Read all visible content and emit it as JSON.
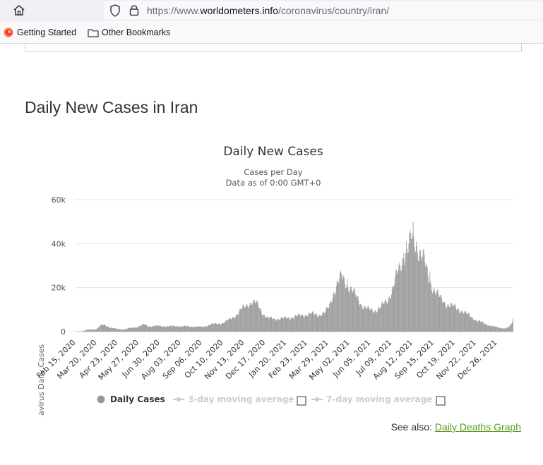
{
  "browser": {
    "url_prefix": "https://www.",
    "url_host": "worldometers.info",
    "url_path": "/coronavirus/country/iran/",
    "bookmarks": [
      {
        "label": "Getting Started",
        "icon": "firefox-icon"
      },
      {
        "label": "Other Bookmarks",
        "icon": "folder-icon"
      }
    ]
  },
  "section": {
    "title": "Daily New Cases in Iran"
  },
  "see_also": {
    "prefix": "See also:",
    "link": "Daily Deaths Graph"
  },
  "chart_data": {
    "type": "bar",
    "title": "Daily New Cases",
    "subtitle_lines": [
      "Cases per Day",
      "Data as of 0:00 GMT+0"
    ],
    "ylabel": "Novel Coronavirus Daily Cases",
    "ylim": [
      0,
      60000
    ],
    "y_ticks": [
      {
        "value": 0,
        "label": "0"
      },
      {
        "value": 20000,
        "label": "20k"
      },
      {
        "value": 40000,
        "label": "40k"
      },
      {
        "value": 60000,
        "label": "60k"
      }
    ],
    "x_start": "2020-02-15",
    "x_end": "2022-01-20",
    "x_tick_labels": [
      "Feb 15, 2020",
      "Mar 20, 2020",
      "Apr 23, 2020",
      "May 27, 2020",
      "Jun 30, 2020",
      "Aug 03, 2020",
      "Sep 06, 2020",
      "Oct 10, 2020",
      "Nov 13, 2020",
      "Dec 17, 2020",
      "Jan 20, 2021",
      "Feb 23, 2021",
      "Mar 29, 2021",
      "May 02, 2021",
      "Jun 05, 2021",
      "Jul 09, 2021",
      "Aug 12, 2021",
      "Sep 15, 2021",
      "Oct 19, 2021",
      "Nov 22, 2021",
      "Dec 26, 2021"
    ],
    "bar_color": "#999999",
    "grid": true,
    "series": [
      {
        "name": "Daily Cases",
        "points": [
          [
            "2020-02-15",
            0
          ],
          [
            "2020-02-25",
            100
          ],
          [
            "2020-03-05",
            900
          ],
          [
            "2020-03-12",
            1000
          ],
          [
            "2020-03-20",
            1200
          ],
          [
            "2020-03-26",
            2800
          ],
          [
            "2020-04-02",
            3100
          ],
          [
            "2020-04-10",
            1900
          ],
          [
            "2020-04-20",
            1300
          ],
          [
            "2020-05-01",
            1000
          ],
          [
            "2020-05-12",
            1600
          ],
          [
            "2020-05-25",
            2200
          ],
          [
            "2020-06-04",
            3300
          ],
          [
            "2020-06-12",
            2400
          ],
          [
            "2020-06-25",
            2600
          ],
          [
            "2020-07-10",
            2400
          ],
          [
            "2020-07-25",
            2500
          ],
          [
            "2020-08-10",
            2400
          ],
          [
            "2020-08-25",
            2300
          ],
          [
            "2020-09-06",
            2100
          ],
          [
            "2020-09-20",
            3300
          ],
          [
            "2020-10-01",
            3600
          ],
          [
            "2020-10-10",
            4000
          ],
          [
            "2020-10-20",
            5500
          ],
          [
            "2020-10-30",
            7500
          ],
          [
            "2020-11-10",
            10500
          ],
          [
            "2020-11-20",
            12900
          ],
          [
            "2020-11-28",
            13500
          ],
          [
            "2020-12-05",
            12000
          ],
          [
            "2020-12-12",
            8500
          ],
          [
            "2020-12-20",
            6200
          ],
          [
            "2021-01-01",
            5800
          ],
          [
            "2021-01-20",
            6100
          ],
          [
            "2021-02-05",
            7000
          ],
          [
            "2021-02-20",
            7800
          ],
          [
            "2021-03-01",
            8100
          ],
          [
            "2021-03-12",
            7600
          ],
          [
            "2021-03-22",
            8500
          ],
          [
            "2021-03-29",
            11000
          ],
          [
            "2021-04-05",
            17500
          ],
          [
            "2021-04-12",
            22000
          ],
          [
            "2021-04-18",
            24500
          ],
          [
            "2021-04-24",
            23000
          ],
          [
            "2021-05-02",
            20000
          ],
          [
            "2021-05-12",
            16000
          ],
          [
            "2021-05-22",
            12000
          ],
          [
            "2021-06-01",
            10000
          ],
          [
            "2021-06-10",
            9500
          ],
          [
            "2021-06-20",
            11000
          ],
          [
            "2021-07-01",
            14000
          ],
          [
            "2021-07-09",
            19000
          ],
          [
            "2021-07-16",
            25000
          ],
          [
            "2021-07-22",
            29000
          ],
          [
            "2021-07-28",
            35000
          ],
          [
            "2021-08-04",
            38000
          ],
          [
            "2021-08-09",
            42000
          ],
          [
            "2021-08-14",
            40000
          ],
          [
            "2021-08-20",
            38000
          ],
          [
            "2021-08-28",
            34000
          ],
          [
            "2021-09-05",
            25000
          ],
          [
            "2021-09-15",
            19000
          ],
          [
            "2021-09-25",
            15000
          ],
          [
            "2021-10-05",
            12500
          ],
          [
            "2021-10-19",
            11000
          ],
          [
            "2021-11-01",
            9000
          ],
          [
            "2021-11-12",
            7000
          ],
          [
            "2021-11-22",
            5200
          ],
          [
            "2021-12-05",
            3600
          ],
          [
            "2021-12-15",
            2700
          ],
          [
            "2021-12-26",
            1900
          ],
          [
            "2022-01-05",
            1500
          ],
          [
            "2022-01-12",
            1800
          ],
          [
            "2022-01-17",
            3000
          ],
          [
            "2022-01-20",
            5500
          ]
        ],
        "spikes": [
          [
            "2020-04-01",
            3200
          ],
          [
            "2020-06-03",
            3500
          ],
          [
            "2020-11-28",
            14000
          ],
          [
            "2021-04-19",
            25500
          ],
          [
            "2021-04-28",
            24000
          ],
          [
            "2021-07-28",
            36000
          ],
          [
            "2021-08-01",
            41000
          ],
          [
            "2021-08-08",
            45000
          ],
          [
            "2021-08-12",
            50000
          ],
          [
            "2021-08-17",
            41000
          ],
          [
            "2021-09-08",
            27000
          ],
          [
            "2022-01-20",
            6000
          ]
        ]
      }
    ],
    "legend": [
      {
        "label": "Daily Cases",
        "active": true
      },
      {
        "label": "3-day moving average",
        "active": false
      },
      {
        "label": "7-day moving average",
        "active": false
      }
    ]
  }
}
